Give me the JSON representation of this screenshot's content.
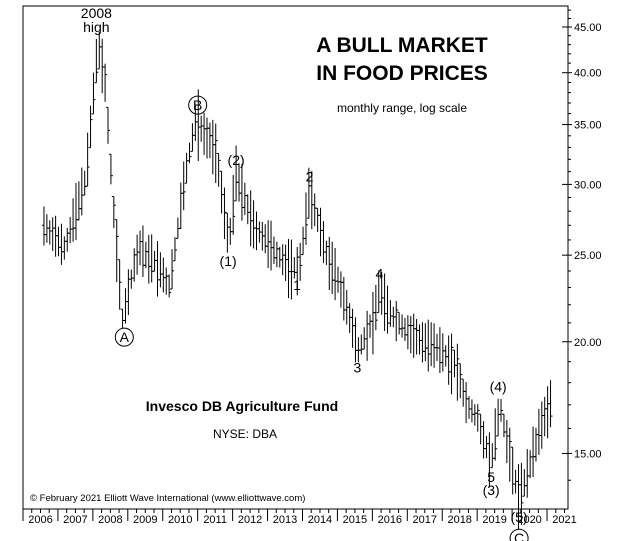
{
  "chart_data": {
    "type": "ohlc-bar",
    "title_line1": "A BULL MARKET",
    "title_line2": "IN FOOD PRICES",
    "subtitle": "monthly range, log scale",
    "series_name": "Invesco DB Agriculture Fund",
    "exchange_label": "NYSE: DBA",
    "copyright": "© February 2021 Elliott Wave International (www.elliottwave.com)",
    "y_scale": "log",
    "ylim": [
      13.0,
      47.5
    ],
    "y_ticks": [
      45,
      40,
      35,
      30,
      25,
      20,
      15
    ],
    "y_tick_labels": [
      "45.00",
      "40.00",
      "35.00",
      "30.00",
      "25.00",
      "20.00",
      "15.00"
    ],
    "xlim": [
      2006.0,
      2021.6
    ],
    "x_tick_labels": [
      "2006",
      "2007",
      "2008",
      "2009",
      "2010",
      "2011",
      "2012",
      "2013",
      "2014",
      "2015",
      "2016",
      "2017",
      "2018",
      "2019",
      "2020",
      "2021"
    ],
    "grid": false,
    "wave_labels": [
      {
        "text": "2008",
        "x": 2008.1,
        "y": 43.2
      },
      {
        "text": "high",
        "x": 2008.1,
        "y": 43.2
      },
      {
        "text": "A",
        "x": 2008.9,
        "y": 21.2,
        "circled": true
      },
      {
        "text": "B",
        "x": 2011.0,
        "y": 35.4,
        "circled": true
      },
      {
        "text": "(1)",
        "x": 2011.9,
        "y": 25.8
      },
      {
        "text": "(2)",
        "x": 2012.1,
        "y": 30.8
      },
      {
        "text": "1",
        "x": 2013.9,
        "y": 24.0
      },
      {
        "text": "2",
        "x": 2014.2,
        "y": 29.6
      },
      {
        "text": "3",
        "x": 2015.6,
        "y": 19.6
      },
      {
        "text": "4",
        "x": 2016.2,
        "y": 23.0
      },
      {
        "text": "(4)",
        "x": 2019.6,
        "y": 17.2
      },
      {
        "text": "5",
        "x": 2019.4,
        "y": 14.3
      },
      {
        "text": "(3)",
        "x": 2019.4,
        "y": 14.3
      },
      {
        "text": "(5)",
        "x": 2020.2,
        "y": 13.4
      },
      {
        "text": "C",
        "x": 2020.2,
        "y": 13.4,
        "circled": true
      }
    ],
    "anchors": [
      [
        2006.6,
        27.0
      ],
      [
        2007.2,
        25.5
      ],
      [
        2007.8,
        30.5
      ],
      [
        2008.15,
        43.2
      ],
      [
        2008.35,
        39.0
      ],
      [
        2008.6,
        28.0
      ],
      [
        2008.85,
        21.2
      ],
      [
        2009.3,
        25.5
      ],
      [
        2009.8,
        24.5
      ],
      [
        2010.2,
        23.0
      ],
      [
        2010.6,
        30.0
      ],
      [
        2010.95,
        35.4
      ],
      [
        2011.5,
        33.0
      ],
      [
        2011.9,
        25.8
      ],
      [
        2012.1,
        30.8
      ],
      [
        2012.6,
        27.0
      ],
      [
        2013.0,
        25.8
      ],
      [
        2013.5,
        24.5
      ],
      [
        2013.9,
        24.0
      ],
      [
        2014.2,
        29.6
      ],
      [
        2014.7,
        25.0
      ],
      [
        2015.1,
        23.0
      ],
      [
        2015.6,
        19.6
      ],
      [
        2016.0,
        21.0
      ],
      [
        2016.2,
        23.0
      ],
      [
        2016.5,
        21.5
      ],
      [
        2017.0,
        20.5
      ],
      [
        2017.5,
        20.0
      ],
      [
        2018.0,
        19.5
      ],
      [
        2018.4,
        18.8
      ],
      [
        2018.7,
        17.0
      ],
      [
        2019.0,
        16.5
      ],
      [
        2019.4,
        14.6
      ],
      [
        2019.65,
        17.0
      ],
      [
        2020.0,
        14.5
      ],
      [
        2020.2,
        13.4
      ],
      [
        2020.5,
        14.5
      ],
      [
        2020.8,
        16.0
      ],
      [
        2021.1,
        17.1
      ]
    ]
  }
}
